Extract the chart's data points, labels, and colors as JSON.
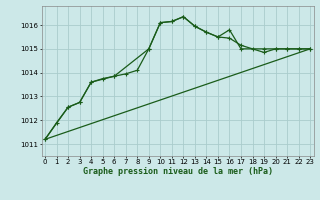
{
  "title": "Graphe pression niveau de la mer (hPa)",
  "background_color": "#cce8e8",
  "grid_color": "#aacccc",
  "line_color": "#1a5c1a",
  "x_ticks": [
    0,
    1,
    2,
    3,
    4,
    5,
    6,
    7,
    8,
    9,
    10,
    11,
    12,
    13,
    14,
    15,
    16,
    17,
    18,
    19,
    20,
    21,
    22,
    23
  ],
  "ylim": [
    1010.5,
    1016.8
  ],
  "yticks": [
    1011,
    1012,
    1013,
    1014,
    1015,
    1016
  ],
  "figsize": [
    3.2,
    2.0
  ],
  "dpi": 100,
  "series1_x": [
    0,
    1,
    2,
    3,
    4,
    5,
    6,
    7,
    8,
    9,
    10,
    11,
    12,
    13,
    14,
    15,
    16,
    17,
    18,
    19,
    20,
    21,
    22,
    23
  ],
  "series1_y": [
    1011.2,
    1011.9,
    1012.55,
    1012.75,
    1013.6,
    1013.75,
    1013.85,
    1013.95,
    1014.1,
    1015.0,
    1016.1,
    1016.15,
    1016.35,
    1015.95,
    1015.7,
    1015.5,
    1015.8,
    1015.0,
    1015.0,
    1015.0,
    1015.0,
    1015.0,
    1015.0,
    1015.0
  ],
  "series2_x": [
    0,
    2,
    3,
    4,
    6,
    9,
    10,
    11,
    12,
    13,
    14,
    15,
    16,
    17,
    19,
    20,
    21,
    22,
    23
  ],
  "series2_y": [
    1011.2,
    1012.55,
    1012.75,
    1013.6,
    1013.85,
    1015.0,
    1016.1,
    1016.15,
    1016.35,
    1015.95,
    1015.7,
    1015.5,
    1015.45,
    1015.15,
    1014.85,
    1015.0,
    1015.0,
    1015.0,
    1015.0
  ],
  "series3_x": [
    0,
    23
  ],
  "series3_y": [
    1011.2,
    1015.0
  ],
  "marker": "+",
  "markersize": 3.5,
  "linewidth": 0.9,
  "tick_fontsize": 5.0,
  "xlabel_fontsize": 6.0
}
